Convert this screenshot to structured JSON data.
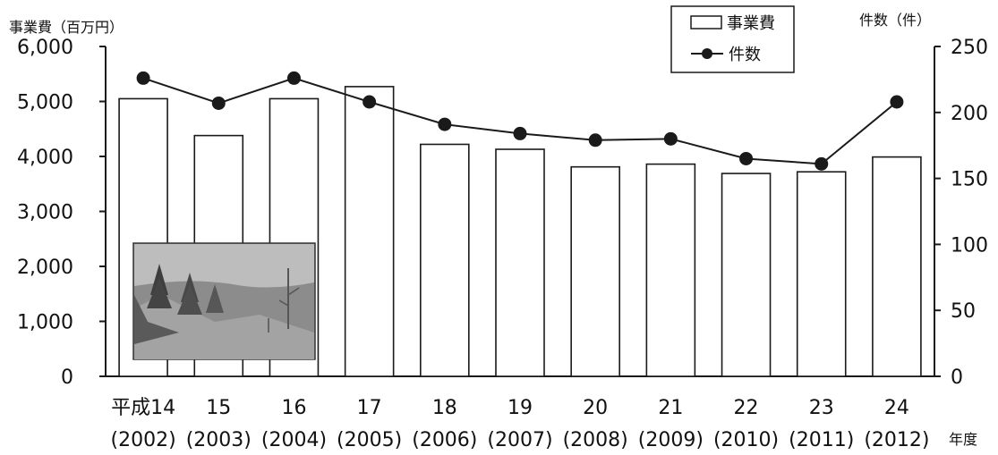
{
  "chart_data": {
    "type": "bar",
    "y_left_label": "事業費（百万円）",
    "y_right_label": "件数（件）",
    "x_unit_label": "年度",
    "y_left_ticks": [
      "6,000",
      "5,000",
      "4,000",
      "3,000",
      "2,000",
      "1,000",
      "0"
    ],
    "y_right_ticks": [
      "250",
      "200",
      "150",
      "100",
      "50",
      "0"
    ],
    "ylim_left": [
      0,
      6000
    ],
    "ylim_right": [
      0,
      250
    ],
    "categories": [
      {
        "era": "平成14",
        "year": "(2002)"
      },
      {
        "era": "15",
        "year": "(2003)"
      },
      {
        "era": "16",
        "year": "(2004)"
      },
      {
        "era": "17",
        "year": "(2005)"
      },
      {
        "era": "18",
        "year": "(2006)"
      },
      {
        "era": "19",
        "year": "(2007)"
      },
      {
        "era": "20",
        "year": "(2008)"
      },
      {
        "era": "21",
        "year": "(2009)"
      },
      {
        "era": "22",
        "year": "(2010)"
      },
      {
        "era": "23",
        "year": "(2011)"
      },
      {
        "era": "24",
        "year": "(2012)"
      }
    ],
    "series": [
      {
        "name": "事業費",
        "type": "bar",
        "axis": "left",
        "values": [
          5050,
          4380,
          5050,
          5270,
          4220,
          4130,
          3810,
          3860,
          3690,
          3720,
          3990
        ]
      },
      {
        "name": "件数",
        "type": "line",
        "axis": "right",
        "values": [
          226,
          207,
          226,
          208,
          191,
          184,
          179,
          180,
          165,
          161,
          208
        ]
      }
    ],
    "legend_position": "top-right"
  },
  "colors": {
    "ink": "#1a1a1a",
    "bar_fill": "#ffffff",
    "background": "#ffffff"
  }
}
